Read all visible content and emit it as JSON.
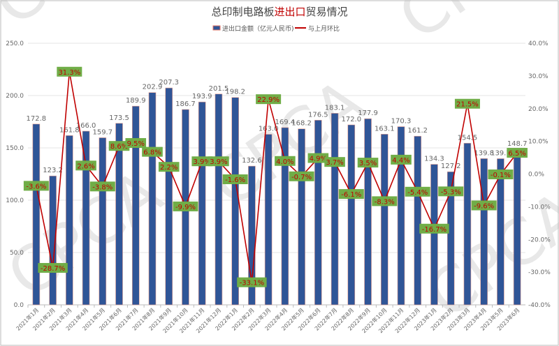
{
  "chart_data": {
    "type": "bar+line",
    "title_parts": [
      "总印制电路板",
      "进出口",
      "贸易情况"
    ],
    "title_colors": [
      "#444444",
      "#c00000",
      "#444444"
    ],
    "categories": [
      "2021年1月",
      "2021年2月",
      "2021年3月",
      "2021年4月",
      "2021年5月",
      "2021年6月",
      "2021年7月",
      "2021年8月",
      "2021年9月",
      "2021年10月",
      "2021年11月",
      "2021年12月",
      "2022年1月",
      "2022年2月",
      "2022年3月",
      "2022年4月",
      "2022年5月",
      "2022年6月",
      "2022年7月",
      "2022年8月",
      "2022年9月",
      "2022年10月",
      "2022年11月",
      "2022年12月",
      "2023年1月",
      "2023年2月",
      "2023年3月",
      "2023年4月",
      "2023年5月",
      "2023年6月"
    ],
    "series": [
      {
        "name": "进出口金额（亿元人民币)",
        "type": "bar",
        "axis": "left",
        "color": "#2f5597",
        "values": [
          172.8,
          123.2,
          161.8,
          166.0,
          159.7,
          173.5,
          189.9,
          202.9,
          207.3,
          186.7,
          193.9,
          201.5,
          198.2,
          132.6,
          163.0,
          169.4,
          168.2,
          176.5,
          183.1,
          172.0,
          177.9,
          163.1,
          170.3,
          161.2,
          134.3,
          127.2,
          154.5,
          139.8,
          139.7,
          148.7
        ]
      },
      {
        "name": "与上月环比",
        "type": "line",
        "axis": "right",
        "color": "#c00000",
        "values": [
          -3.6,
          -28.7,
          31.3,
          2.6,
          -3.8,
          8.6,
          9.5,
          6.8,
          2.2,
          -9.9,
          3.9,
          3.9,
          -1.6,
          -33.1,
          22.9,
          4.0,
          -0.7,
          4.9,
          3.7,
          -6.1,
          3.5,
          -8.3,
          4.4,
          -5.4,
          -16.7,
          -5.3,
          21.5,
          -9.6,
          -0.1,
          6.5
        ]
      }
    ],
    "left_axis": {
      "ylim": [
        0,
        250
      ],
      "ticks": [
        "0.0",
        "50.0",
        "100.0",
        "150.0",
        "200.0",
        "250.0"
      ]
    },
    "right_axis": {
      "ylim": [
        -40,
        40
      ],
      "ticks": [
        "-40.0%",
        "-30.0%",
        "-20.0%",
        "-10.0%",
        "0.0%",
        "10.0%",
        "20.0%",
        "30.0%",
        "40.0%"
      ]
    },
    "label_bg": "#70ad47",
    "legend": "top",
    "grid": true,
    "watermark": "CPCA"
  }
}
